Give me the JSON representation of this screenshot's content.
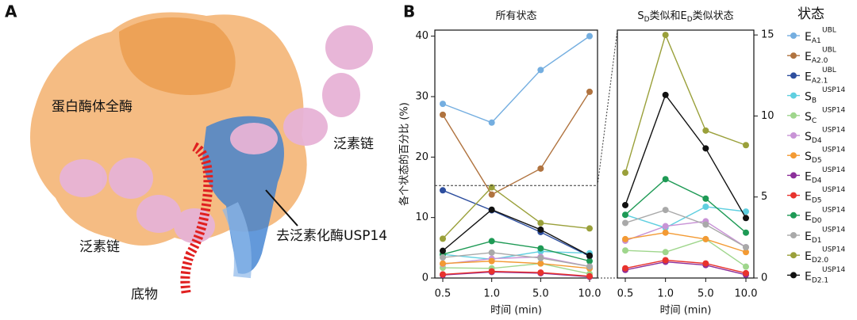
{
  "panels": {
    "a": "A",
    "b": "B"
  },
  "image_labels": {
    "proteasome": "蛋白酶体全酶",
    "ub_chain_right": "泛素链",
    "ub_chain_left": "泛素链",
    "usp14": "去泛素化酶USP14",
    "substrate": "底物"
  },
  "legend_title": "状态",
  "chart_data": [
    {
      "type": "line",
      "title": [
        {
          "text": "所有状态"
        }
      ],
      "x_label": "时间 (min)",
      "y_label": "各个状态的百分比 (%)",
      "categories": [
        "0.5",
        "1.0",
        "5.0",
        "10.0"
      ],
      "ylim": [
        0,
        41
      ],
      "yticks": [
        0,
        10,
        20,
        30,
        40
      ],
      "axis_side": "left",
      "series": [
        {
          "name": {
            "base": "E",
            "sub": "A1",
            "sup": "UBL"
          },
          "color": "#74aee0",
          "values": [
            28.8,
            25.7,
            34.4,
            40.0
          ]
        },
        {
          "name": {
            "base": "E",
            "sub": "A2.0",
            "sup": "UBL"
          },
          "color": "#b0733f",
          "values": [
            27.0,
            13.8,
            18.1,
            30.8
          ]
        },
        {
          "name": {
            "base": "E",
            "sub": "A2.1",
            "sup": "UBL"
          },
          "color": "#2d4e9e",
          "values": [
            14.5,
            11.2,
            7.6,
            3.6
          ]
        },
        {
          "name": {
            "base": "S",
            "sub": "B",
            "sup": "USP14"
          },
          "color": "#5fcfe0",
          "values": [
            3.9,
            3.1,
            4.4,
            4.1
          ],
          "zoom": true
        },
        {
          "name": {
            "base": "S",
            "sub": "C",
            "sup": "USP14"
          },
          "color": "#9fd68c",
          "values": [
            1.7,
            1.6,
            2.4,
            0.7
          ],
          "zoom": true
        },
        {
          "name": {
            "base": "S",
            "sub": "D4",
            "sup": "USP14"
          },
          "color": "#c893d6",
          "values": [
            2.3,
            3.2,
            3.5,
            1.9
          ],
          "zoom": true
        },
        {
          "name": {
            "base": "S",
            "sub": "D5",
            "sup": "USP14"
          },
          "color": "#f39a33",
          "values": [
            2.4,
            2.8,
            2.4,
            1.6
          ],
          "zoom": true
        },
        {
          "name": {
            "base": "E",
            "sub": "D4",
            "sup": "USP14"
          },
          "color": "#8b2e9a",
          "values": [
            0.5,
            1.0,
            0.8,
            0.2
          ],
          "zoom": true
        },
        {
          "name": {
            "base": "E",
            "sub": "D5",
            "sup": "USP14"
          },
          "color": "#e8322d",
          "values": [
            0.6,
            1.1,
            0.9,
            0.3
          ],
          "zoom": true
        },
        {
          "name": {
            "base": "E",
            "sub": "D0",
            "sup": "USP14"
          },
          "color": "#1e9a55",
          "values": [
            3.9,
            6.1,
            4.9,
            2.8
          ],
          "zoom": true
        },
        {
          "name": {
            "base": "E",
            "sub": "D1",
            "sup": "USP14"
          },
          "color": "#a9a9a9",
          "values": [
            3.4,
            4.2,
            3.3,
            1.9
          ],
          "zoom": true
        },
        {
          "name": {
            "base": "E",
            "sub": "D2.0",
            "sup": "USP14"
          },
          "color": "#9aa03a",
          "values": [
            6.5,
            15.0,
            9.1,
            8.2
          ],
          "zoom": true
        },
        {
          "name": {
            "base": "E",
            "sub": "D2.1",
            "sup": "USP14"
          },
          "color": "#111111",
          "values": [
            4.5,
            11.3,
            8.0,
            3.7
          ],
          "zoom": true
        }
      ]
    },
    {
      "type": "line",
      "title": [
        {
          "text": "S"
        },
        {
          "text": "D",
          "sub": true
        },
        {
          "text": "类似和E"
        },
        {
          "text": "D",
          "sub": true
        },
        {
          "text": "类似状态"
        }
      ],
      "x_label": "时间 (min)",
      "ylim": [
        0,
        15.3
      ],
      "yticks": [
        0,
        5,
        10,
        15
      ],
      "axis_side": "right"
    }
  ]
}
